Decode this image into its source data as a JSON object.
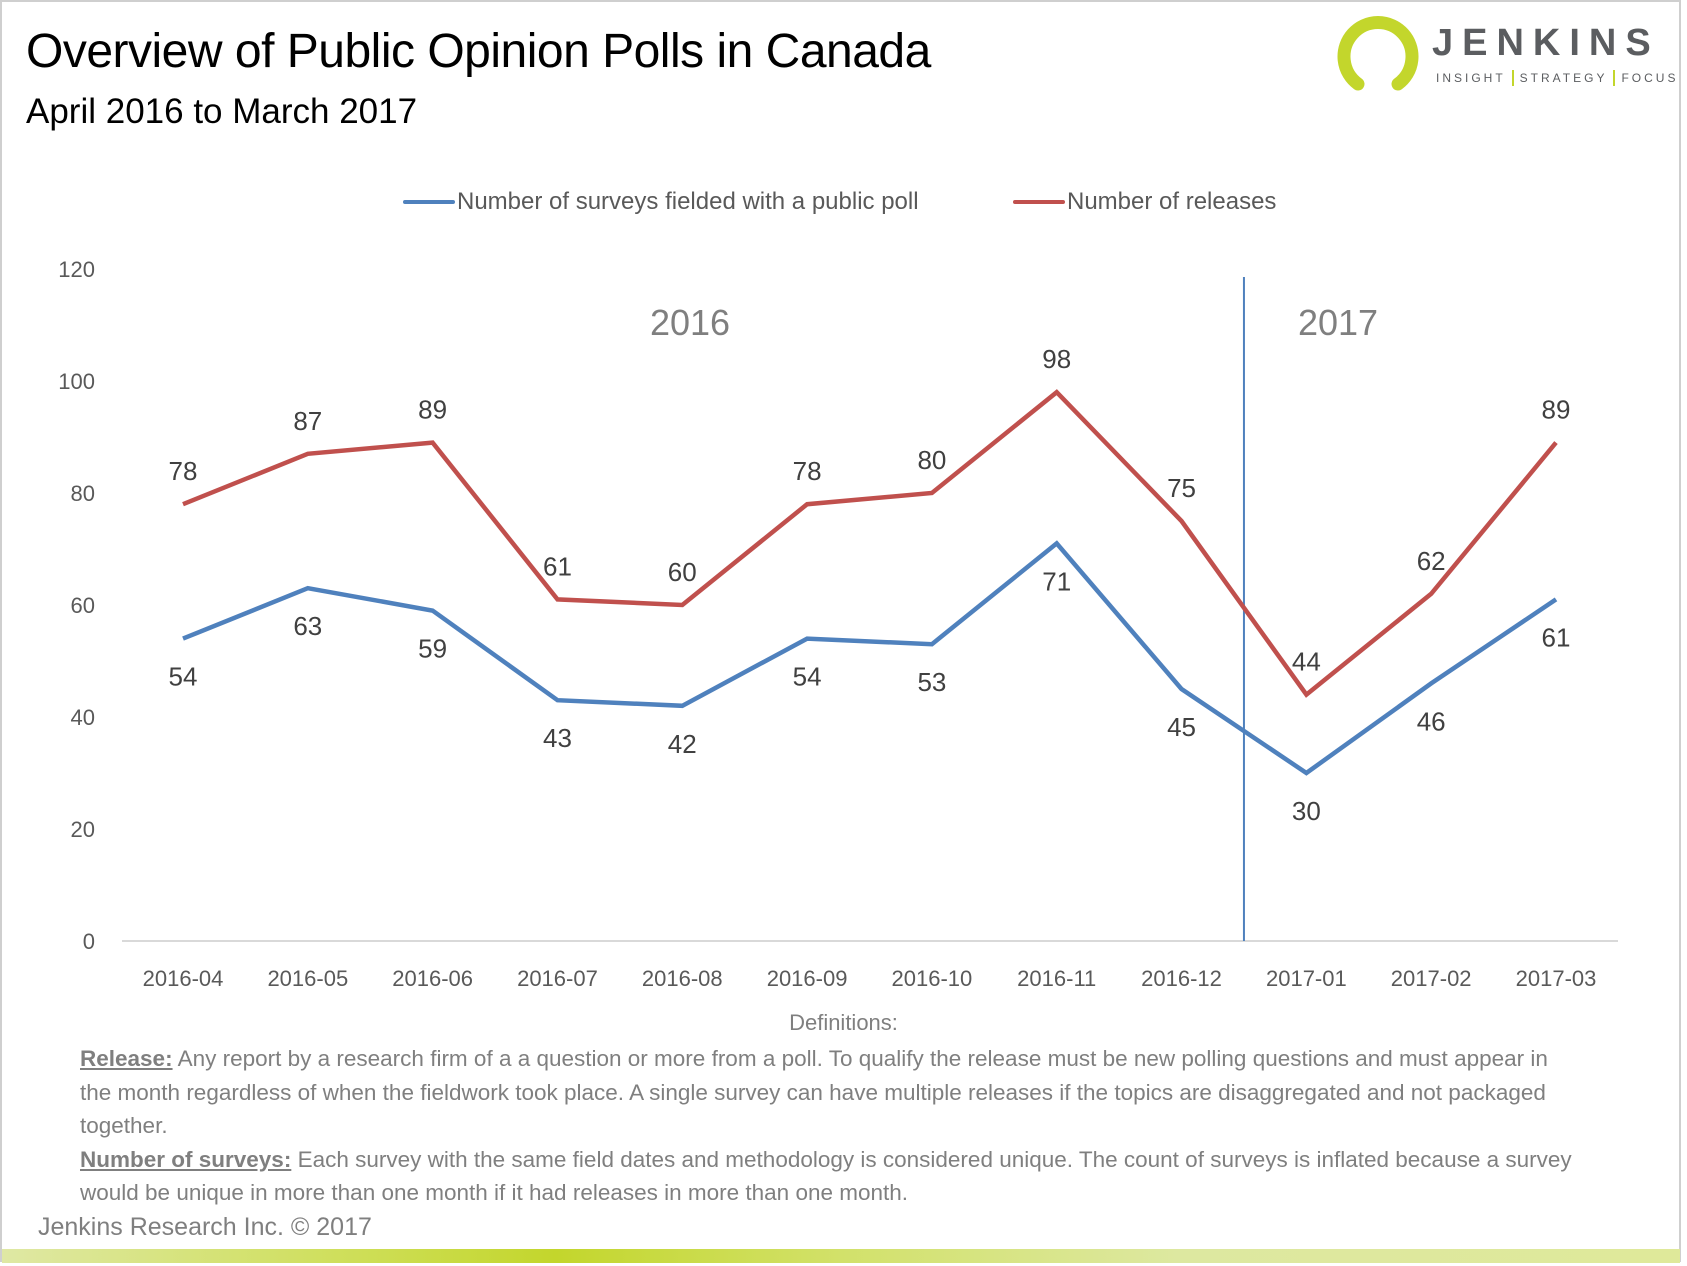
{
  "header": {
    "title": "Overview of Public Opinion Polls in Canada",
    "subtitle": "April 2016 to March 2017"
  },
  "logo": {
    "name": "JENKINS",
    "tagline": [
      "INSIGHT",
      "STRATEGY",
      "FOCUS"
    ],
    "accent_color": "#c3d62c",
    "text_color": "#5b5d60"
  },
  "chart_data": {
    "type": "line",
    "title": "",
    "xlabel": "",
    "ylabel": "",
    "categories": [
      "2016-04",
      "2016-05",
      "2016-06",
      "2016-07",
      "2016-08",
      "2016-09",
      "2016-10",
      "2016-11",
      "2016-12",
      "2017-01",
      "2017-02",
      "2017-03"
    ],
    "series": [
      {
        "name": "Number of surveys fielded with a public poll",
        "color": "#4f81bd",
        "values": [
          54,
          63,
          59,
          43,
          42,
          54,
          53,
          71,
          45,
          30,
          46,
          61
        ],
        "label_position": "below"
      },
      {
        "name": "Number of releases",
        "color": "#c0504d",
        "values": [
          78,
          87,
          89,
          61,
          60,
          78,
          80,
          98,
          75,
          44,
          62,
          89
        ],
        "label_position": "above"
      }
    ],
    "ylim": [
      0,
      120
    ],
    "yticks": [
      0,
      20,
      40,
      60,
      80,
      100,
      120
    ],
    "grid": false,
    "legend_position": "top",
    "annotations": [
      {
        "text": "2016",
        "region": "2016-04 to 2016-12"
      },
      {
        "text": "2017",
        "region": "2017-01 to 2017-03"
      }
    ],
    "divider": {
      "between": [
        "2016-12",
        "2017-01"
      ],
      "color": "#4f81bd"
    }
  },
  "definitions": {
    "heading": "Definitions:",
    "items": [
      {
        "term": "Release:",
        "text": " Any report by a research firm of a a question or more from a poll. To qualify the release must be new polling questions and must appear in the month regardless of when the fieldwork took place. A single survey can have multiple releases if the topics are disaggregated and not packaged together."
      },
      {
        "term": "Number of surveys:",
        "text": " Each survey with the same field dates and methodology is considered unique. The count of surveys is inflated because a survey would be unique in more than one month if it had releases in more than one month."
      }
    ]
  },
  "footer": {
    "copyright": "Jenkins Research Inc. © 2017"
  }
}
